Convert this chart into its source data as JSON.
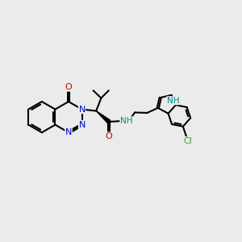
{
  "background_color": "#ebebeb",
  "bond_color": "#000000",
  "bond_width": 1.5,
  "atom_colors": {
    "N": "#0000cc",
    "O": "#cc0000",
    "Cl": "#33aa33",
    "NH": "#008888",
    "C": "#000000"
  },
  "font_size": 8.0,
  "xlim": [
    0,
    12
  ],
  "ylim": [
    0,
    10
  ]
}
